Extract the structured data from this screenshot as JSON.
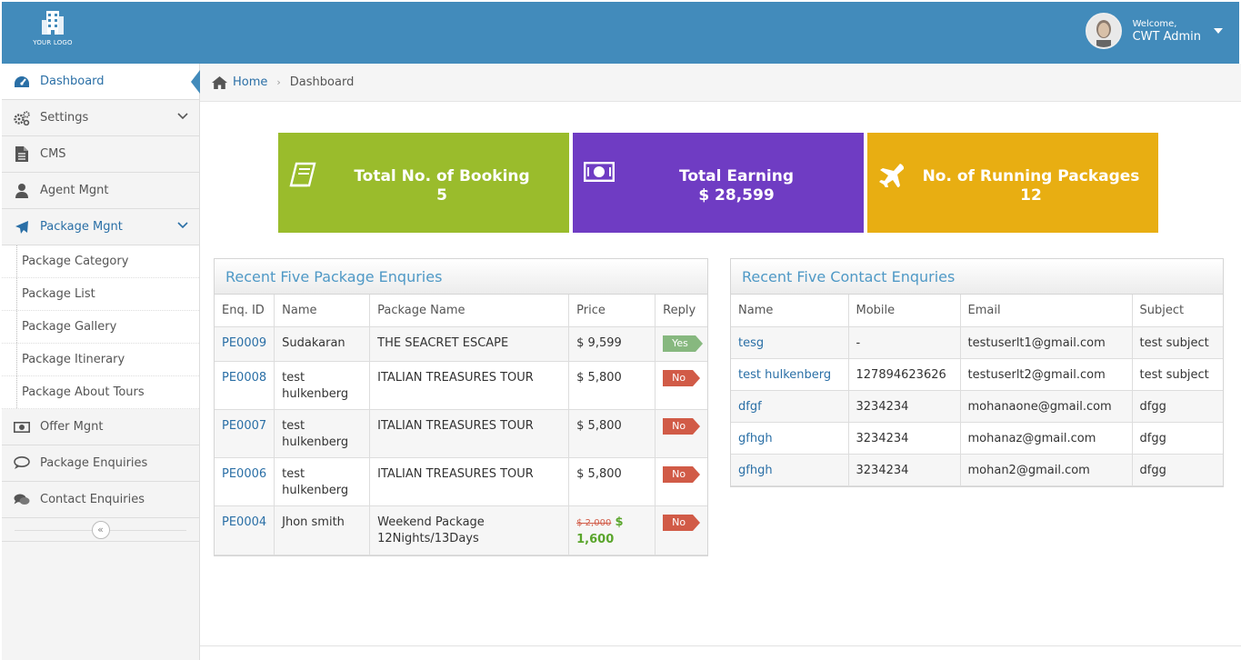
{
  "header": {
    "logo_text": "YOUR LOGO",
    "welcome": "Welcome,",
    "user_name": "CWT Admin"
  },
  "sidebar": {
    "items": [
      {
        "label": "Dashboard",
        "icon": "dashboard-icon",
        "active": true
      },
      {
        "label": "Settings",
        "icon": "gears-icon"
      },
      {
        "label": "CMS",
        "icon": "file-icon"
      },
      {
        "label": "Agent Mgnt",
        "icon": "user-icon"
      },
      {
        "label": "Package Mgnt",
        "icon": "plane-icon",
        "open": true
      },
      {
        "label": "Offer Mgnt",
        "icon": "money-icon"
      },
      {
        "label": "Package Enquiries",
        "icon": "comment-icon"
      },
      {
        "label": "Contact Enquiries",
        "icon": "comments-icon"
      }
    ],
    "sub_items": [
      "Package Category",
      "Package List",
      "Package Gallery",
      "Package Itinerary",
      "Package About Tours"
    ],
    "collapse_glyph": "«"
  },
  "breadcrumb": {
    "home": "Home",
    "current": "Dashboard"
  },
  "stats": [
    {
      "title": "Total No. of Booking",
      "value": "5",
      "color": "#9abc2c",
      "icon": "book-icon"
    },
    {
      "title": "Total Earning",
      "value": "$ 28,599",
      "color": "#6f3cc3",
      "icon": "money-icon"
    },
    {
      "title": "No. of Running Packages",
      "value": "12",
      "color": "#e8ae12",
      "icon": "plane-icon"
    }
  ],
  "package_enquiries": {
    "title": "Recent Five Package Enquries",
    "columns": [
      "Enq. ID",
      "Name",
      "Package Name",
      "Price",
      "Reply"
    ],
    "rows": [
      {
        "id": "PE0009",
        "name": "Sudakaran",
        "package": "THE SEACRET ESCAPE",
        "price": "$ 9,599",
        "reply": "Yes"
      },
      {
        "id": "PE0008",
        "name": "test hulkenberg",
        "package": "ITALIAN TREASURES TOUR",
        "price": "$ 5,800",
        "reply": "No"
      },
      {
        "id": "PE0007",
        "name": "test hulkenberg",
        "package": "ITALIAN TREASURES TOUR",
        "price": "$ 5,800",
        "reply": "No"
      },
      {
        "id": "PE0006",
        "name": "test hulkenberg",
        "package": "ITALIAN TREASURES TOUR",
        "price": "$ 5,800",
        "reply": "No"
      },
      {
        "id": "PE0004",
        "name": "Jhon smith",
        "package": "Weekend Package 12Nights/13Days",
        "old_price": "$ 2,000",
        "price": "$ 1,600",
        "reply": "No"
      }
    ]
  },
  "contact_enquiries": {
    "title": "Recent Five Contact Enquries",
    "columns": [
      "Name",
      "Mobile",
      "Email",
      "Subject"
    ],
    "rows": [
      {
        "name": "tesg",
        "mobile": "-",
        "email": "testuserlt1@gmail.com",
        "subject": "test subject"
      },
      {
        "name": "test hulkenberg",
        "mobile": "127894623626",
        "email": "testuserlt2@gmail.com",
        "subject": "test subject"
      },
      {
        "name": "dfgf",
        "mobile": "3234234",
        "email": "mohanaone@gmail.com",
        "subject": "dfgg"
      },
      {
        "name": "gfhgh",
        "mobile": "3234234",
        "email": "mohanaz@gmail.com",
        "subject": "dfgg"
      },
      {
        "name": "gfhgh",
        "mobile": "3234234",
        "email": "mohan2@gmail.com",
        "subject": "dfgg"
      }
    ]
  }
}
